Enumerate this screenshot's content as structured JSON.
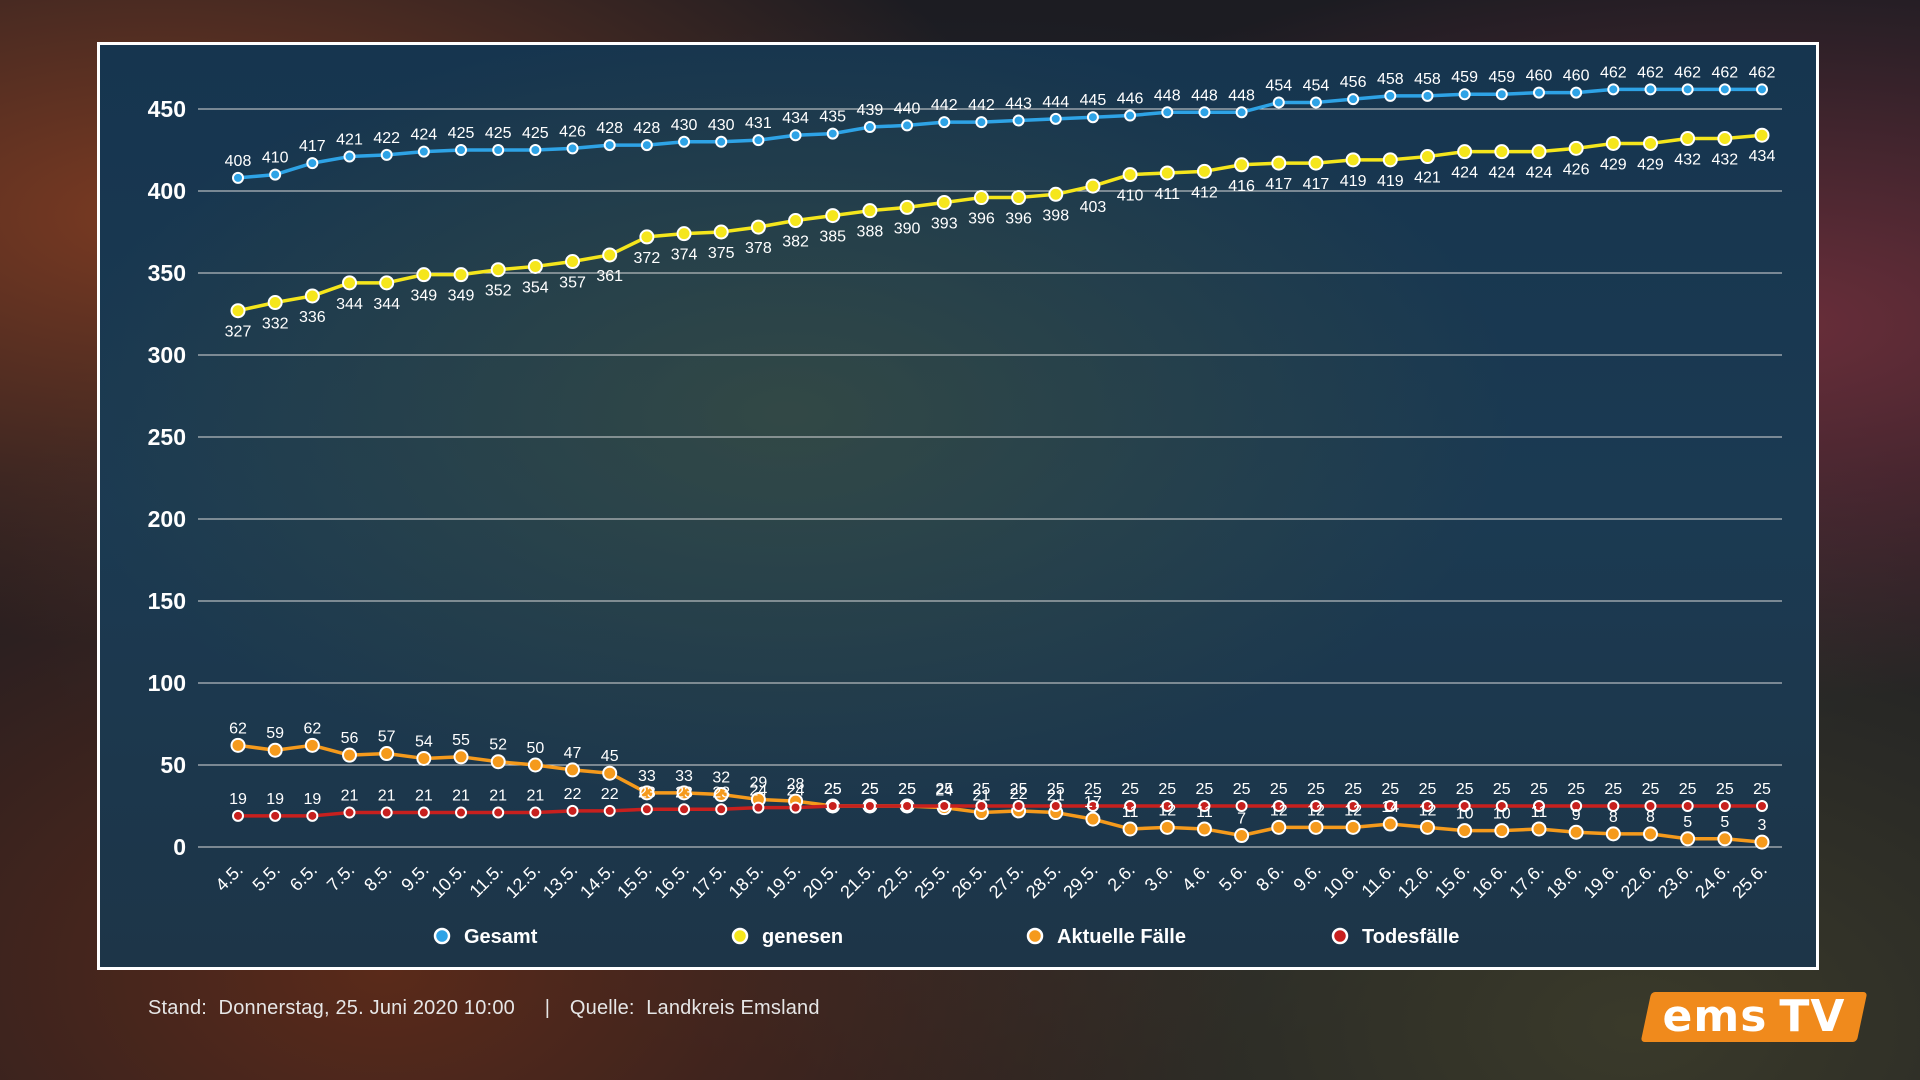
{
  "chart_data": {
    "type": "line",
    "title": "",
    "xlabel": "",
    "ylabel": "",
    "ylim": [
      0,
      450
    ],
    "yticks": [
      0,
      50,
      100,
      150,
      200,
      250,
      300,
      350,
      400,
      450
    ],
    "grid": true,
    "legend_position": "bottom",
    "categories": [
      "4.5.",
      "5.5.",
      "6.5.",
      "7.5.",
      "8.5.",
      "9.5.",
      "10.5.",
      "11.5.",
      "12.5.",
      "13.5.",
      "14.5.",
      "15.5.",
      "16.5.",
      "17.5.",
      "18.5.",
      "19.5.",
      "20.5.",
      "21.5.",
      "22.5.",
      "25.5.",
      "26.5.",
      "27.5.",
      "28.5.",
      "29.5.",
      "2.6.",
      "3.6.",
      "4.6.",
      "5.6.",
      "8.6.",
      "9.6.",
      "10.6.",
      "11.6.",
      "12.6.",
      "15.6.",
      "16.6.",
      "17.6.",
      "18.6.",
      "19.6.",
      "22.6.",
      "23.6.",
      "24.6.",
      "25.6."
    ],
    "series": [
      {
        "name": "Gesamt",
        "color": "#2ea3e6",
        "marker": "small",
        "label_pos": "above",
        "values": [
          408,
          410,
          417,
          421,
          422,
          424,
          425,
          425,
          425,
          426,
          428,
          428,
          430,
          430,
          431,
          434,
          435,
          439,
          440,
          442,
          442,
          443,
          444,
          445,
          446,
          448,
          448,
          448,
          454,
          454,
          456,
          458,
          458,
          459,
          459,
          460,
          460,
          462,
          462,
          462,
          462,
          462
        ]
      },
      {
        "name": "genesen",
        "color": "#f5e61c",
        "marker": "large",
        "label_pos": "below",
        "values": [
          327,
          332,
          336,
          344,
          344,
          349,
          349,
          352,
          354,
          357,
          361,
          372,
          374,
          375,
          378,
          382,
          385,
          388,
          390,
          393,
          396,
          396,
          398,
          403,
          410,
          411,
          412,
          416,
          417,
          417,
          419,
          419,
          421,
          424,
          424,
          424,
          426,
          429,
          429,
          432,
          432,
          434
        ]
      },
      {
        "name": "Aktuelle Fälle",
        "color": "#f59a1c",
        "marker": "large",
        "label_pos": "above",
        "values": [
          62,
          59,
          62,
          56,
          57,
          54,
          55,
          52,
          50,
          47,
          45,
          33,
          33,
          32,
          29,
          28,
          25,
          25,
          25,
          24,
          21,
          22,
          21,
          17,
          11,
          12,
          11,
          7,
          12,
          12,
          12,
          14,
          12,
          10,
          10,
          11,
          9,
          8,
          8,
          5,
          5,
          3
        ]
      },
      {
        "name": "Todesfälle",
        "color": "#c8201e",
        "marker": "small",
        "label_pos": "above",
        "values": [
          19,
          19,
          19,
          21,
          21,
          21,
          21,
          21,
          21,
          22,
          22,
          23,
          23,
          23,
          24,
          24,
          25,
          25,
          25,
          25,
          25,
          25,
          25,
          25,
          25,
          25,
          25,
          25,
          25,
          25,
          25,
          25,
          25,
          25,
          25,
          25,
          25,
          25,
          25,
          25,
          25,
          25
        ]
      }
    ]
  },
  "footer": {
    "stand_label": "Stand:",
    "stand_value": "Donnerstag, 25. Juni 2020 10:00",
    "separator": "|",
    "quelle_label": "Quelle:",
    "quelle_value": "Landkreis Emsland"
  },
  "logo": {
    "part1": "ems",
    "part2": "TV",
    "color": "#f08a1c"
  }
}
